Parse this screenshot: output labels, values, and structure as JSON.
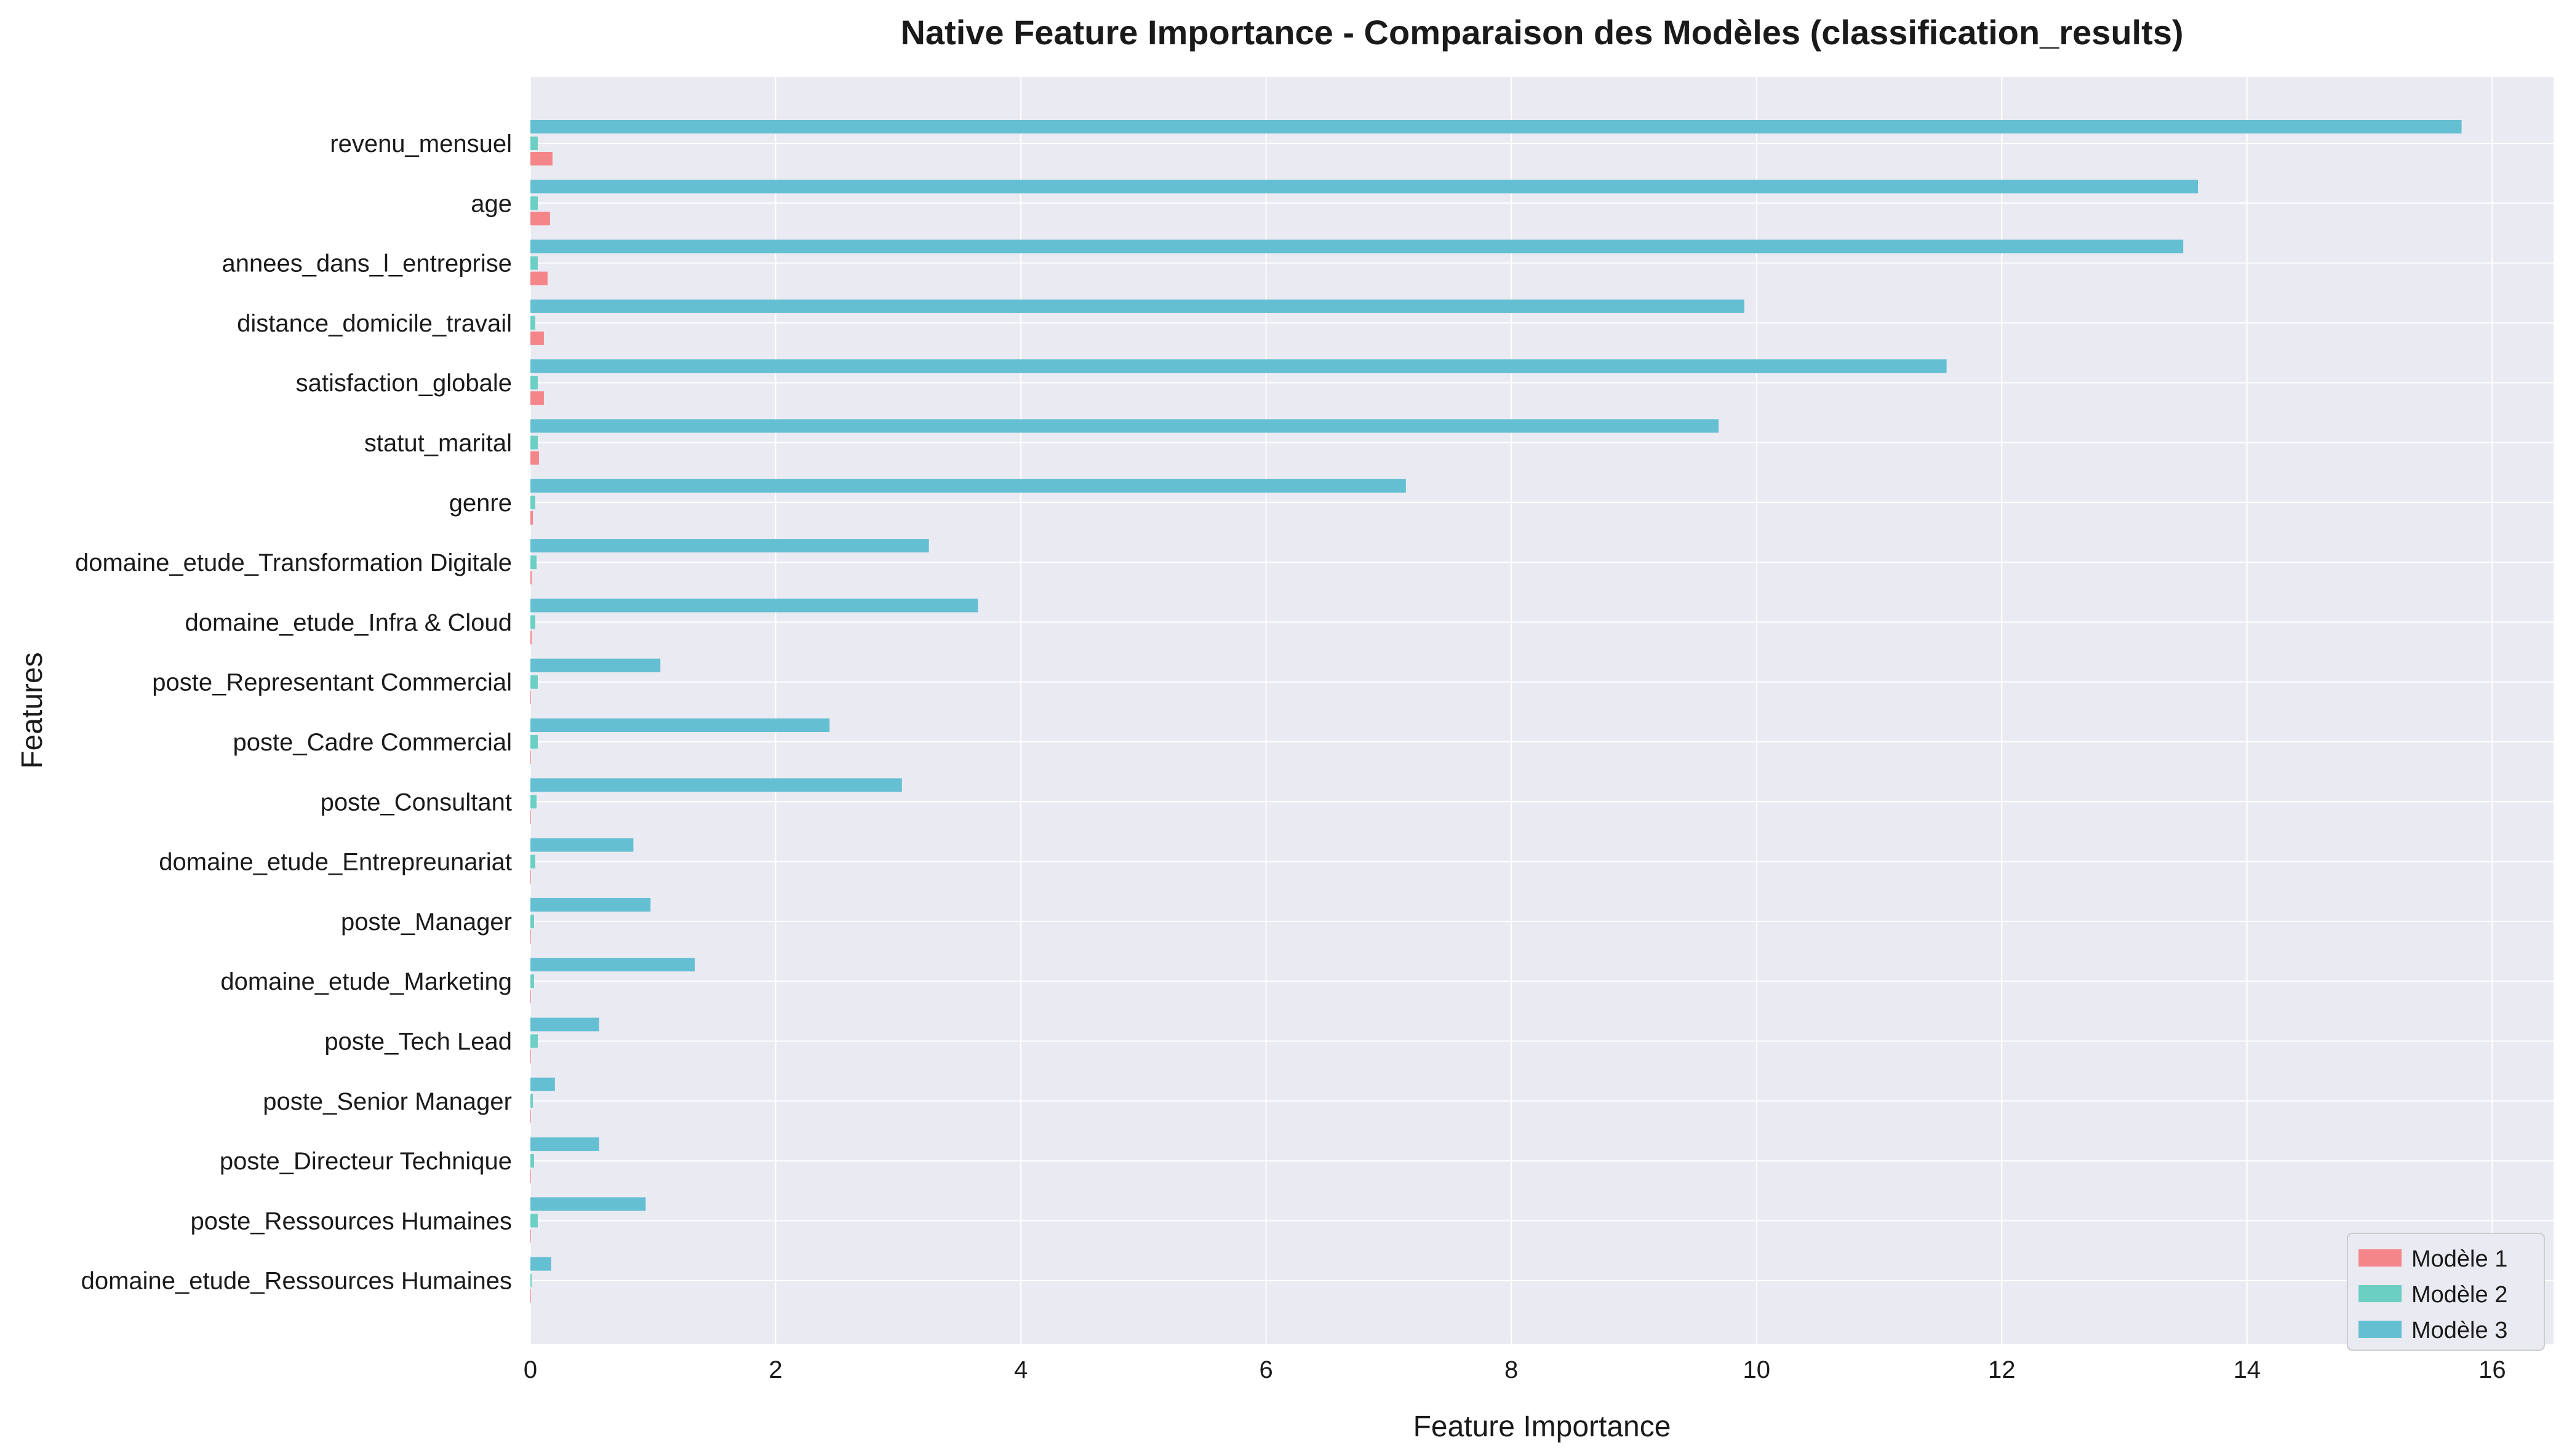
{
  "chart_data": {
    "type": "bar",
    "orientation": "horizontal",
    "title": "Native Feature Importance - Comparaison des Modèles (classification_results)",
    "xlabel": "Feature Importance",
    "ylabel": "Features",
    "xlim": [
      0,
      16.5
    ],
    "xticks": [
      "0",
      "2",
      "4",
      "6",
      "8",
      "10",
      "12",
      "14",
      "16"
    ],
    "grid": true,
    "legend_position": "bottom-right",
    "categories": [
      "revenu_mensuel",
      "age",
      "annees_dans_l_entreprise",
      "distance_domicile_travail",
      "satisfaction_globale",
      "statut_marital",
      "genre",
      "domaine_etude_Transformation Digitale",
      "domaine_etude_Infra & Cloud",
      "poste_Representant Commercial",
      "poste_Cadre Commercial",
      "poste_Consultant",
      "domaine_etude_Entrepreunariat",
      "poste_Manager",
      "domaine_etude_Marketing",
      "poste_Tech Lead",
      "poste_Senior Manager",
      "poste_Directeur Technique",
      "poste_Ressources Humaines",
      "domaine_etude_Ressources Humaines"
    ],
    "series": [
      {
        "name": "Modèle 1",
        "color": "#f4868a",
        "values": [
          0.18,
          0.16,
          0.14,
          0.11,
          0.11,
          0.07,
          0.02,
          0.01,
          0.01,
          0.005,
          0.005,
          0.005,
          0.005,
          0.005,
          0.005,
          0.005,
          0.005,
          0.005,
          0.005,
          0.005
        ]
      },
      {
        "name": "Modèle 2",
        "color": "#6ccfc4",
        "values": [
          0.06,
          0.06,
          0.06,
          0.04,
          0.06,
          0.06,
          0.04,
          0.05,
          0.04,
          0.06,
          0.06,
          0.05,
          0.04,
          0.03,
          0.03,
          0.06,
          0.02,
          0.03,
          0.06,
          0.01
        ]
      },
      {
        "name": "Modèle 3",
        "color": "#65bfd3",
        "values": [
          15.75,
          13.6,
          13.48,
          9.9,
          11.55,
          9.69,
          7.14,
          3.25,
          3.65,
          1.06,
          2.44,
          3.03,
          0.84,
          0.98,
          1.34,
          0.56,
          0.2,
          0.56,
          0.94,
          0.17
        ]
      }
    ]
  }
}
